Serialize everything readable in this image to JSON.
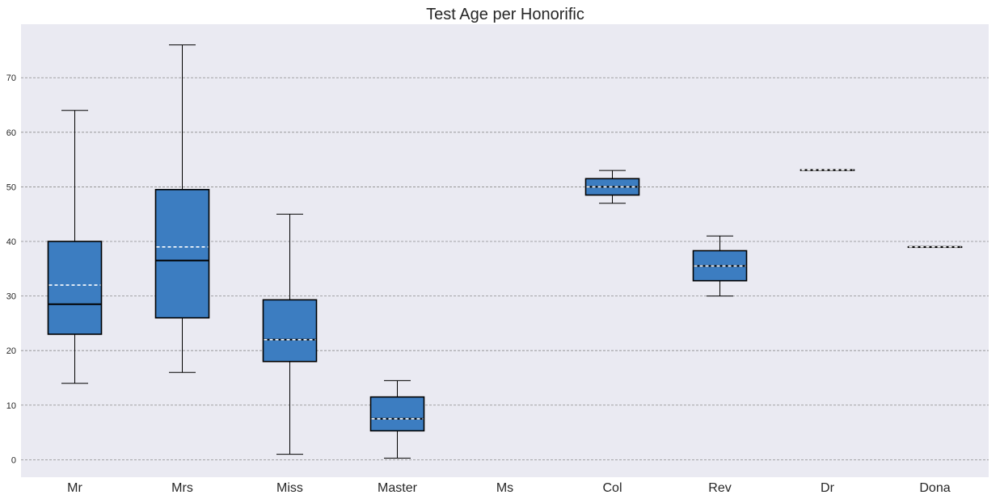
{
  "chart_data": {
    "type": "box",
    "title": "Test Age per Honorific",
    "xlabel": "",
    "ylabel": "",
    "ylim": [
      -3.2,
      79.8
    ],
    "yticks": [
      0,
      10,
      20,
      30,
      40,
      50,
      60,
      70
    ],
    "grid": true,
    "colors": {
      "plot_background": "#eaeaf2",
      "box_fill": "#3c7dc1",
      "box_edge": "#000000",
      "median_line": "#000000",
      "mean_line": "#ffffff",
      "grid_line": "#8c8c8c"
    },
    "categories": [
      "Mr",
      "Mrs",
      "Miss",
      "Master",
      "Ms",
      "Col",
      "Rev",
      "Dr",
      "Dona"
    ],
    "boxes": [
      {
        "category": "Mr",
        "whisker_low": 14,
        "q1": 23,
        "median": 28.5,
        "mean": 32,
        "q3": 40,
        "whisker_high": 64
      },
      {
        "category": "Mrs",
        "whisker_low": 16,
        "q1": 26,
        "median": 36.5,
        "mean": 39,
        "q3": 49.5,
        "whisker_high": 76
      },
      {
        "category": "Miss",
        "whisker_low": 1,
        "q1": 18,
        "median": 22,
        "mean": 22,
        "q3": 29.3,
        "whisker_high": 45
      },
      {
        "category": "Master",
        "whisker_low": 0.3,
        "q1": 5.3,
        "median": 7.5,
        "mean": 7.5,
        "q3": 11.5,
        "whisker_high": 14.5
      },
      {
        "category": "Ms"
      },
      {
        "category": "Col",
        "whisker_low": 47,
        "q1": 48.5,
        "median": 50,
        "mean": 50,
        "q3": 51.5,
        "whisker_high": 53
      },
      {
        "category": "Rev",
        "whisker_low": 30,
        "q1": 32.8,
        "median": 35.5,
        "mean": 35.5,
        "q3": 38.3,
        "whisker_high": 41
      },
      {
        "category": "Dr",
        "whisker_low": 53.1,
        "q1": 53.1,
        "median": 53.1,
        "mean": 53.1,
        "q3": 53.1,
        "whisker_high": 53.1
      },
      {
        "category": "Dona",
        "whisker_low": 39,
        "q1": 39,
        "median": 39,
        "mean": 39,
        "q3": 39,
        "whisker_high": 39
      }
    ]
  }
}
